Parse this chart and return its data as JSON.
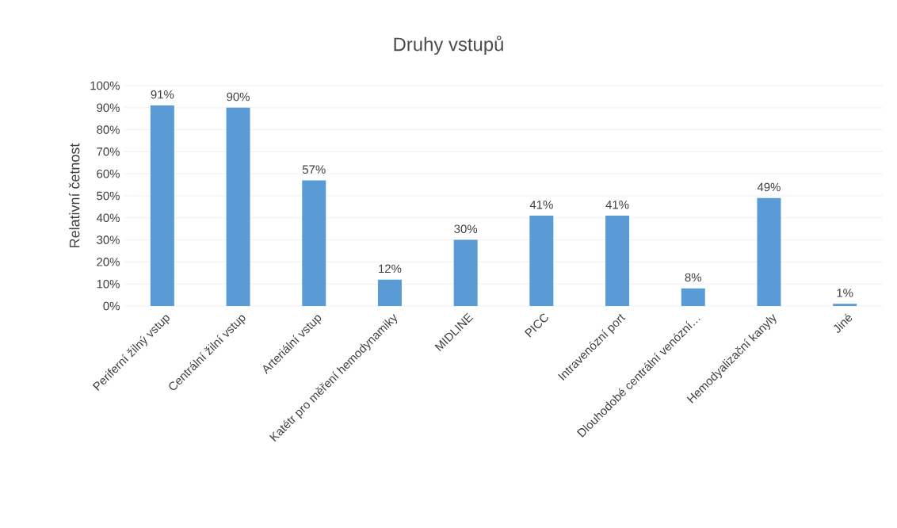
{
  "chart_data": {
    "type": "bar",
    "title": "Druhy vstupů",
    "ylabel": "Relativní četnost",
    "categories": [
      "Periferní žilný vstup",
      "Centrální žilní vstup",
      "Arteriální vstup",
      "Katétr pro měření hemodynamiky",
      "MIDLINE",
      "PICC",
      "Intravenózní port",
      "Dlouhodobé centrální venózní…",
      "Hemodyalizační kanyly",
      "Jiné"
    ],
    "values": [
      91,
      90,
      57,
      12,
      30,
      41,
      41,
      8,
      49,
      1
    ],
    "value_labels": [
      "91%",
      "90%",
      "57%",
      "12%",
      "30%",
      "41%",
      "41%",
      "8%",
      "49%",
      "1%"
    ],
    "color": "#5b9bd5",
    "ylim": [
      0,
      100
    ],
    "yticks": [
      {
        "value": 0,
        "label": "0%"
      },
      {
        "value": 10,
        "label": "10%"
      },
      {
        "value": 20,
        "label": "20%"
      },
      {
        "value": 30,
        "label": "30%"
      },
      {
        "value": 40,
        "label": "40%"
      },
      {
        "value": 50,
        "label": "50%"
      },
      {
        "value": 60,
        "label": "60%"
      },
      {
        "value": 70,
        "label": "70%"
      },
      {
        "value": 80,
        "label": "80%"
      },
      {
        "value": 90,
        "label": "90%"
      },
      {
        "value": 100,
        "label": "100%"
      }
    ],
    "grid": "y"
  }
}
